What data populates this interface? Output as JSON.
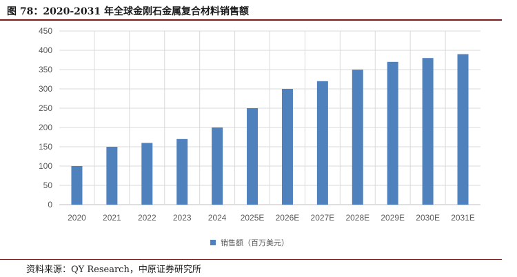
{
  "title": "图 78：2020-2031 年全球金刚石金属复合材料销售额",
  "source": "资料来源：QY Research，中原证券研究所",
  "colors": {
    "bar": "#4f81bd",
    "rule": "#7a1a1a",
    "grid": "#d9d9d9",
    "axis_text": "#595959"
  },
  "chart_data": {
    "type": "bar",
    "categories": [
      "2020",
      "2021",
      "2022",
      "2023",
      "2024",
      "2025E",
      "2026E",
      "2027E",
      "2028E",
      "2029E",
      "2030E",
      "2031E"
    ],
    "series": [
      {
        "name": "销售额（百万美元）",
        "values": [
          100,
          150,
          160,
          170,
          200,
          250,
          300,
          320,
          350,
          370,
          380,
          390
        ]
      }
    ],
    "title": "",
    "xlabel": "",
    "ylabel": "",
    "ylim": [
      0,
      450
    ],
    "yticks": [
      0,
      50,
      100,
      150,
      200,
      250,
      300,
      350,
      400,
      450
    ],
    "grid": true,
    "legend": "bottom"
  }
}
